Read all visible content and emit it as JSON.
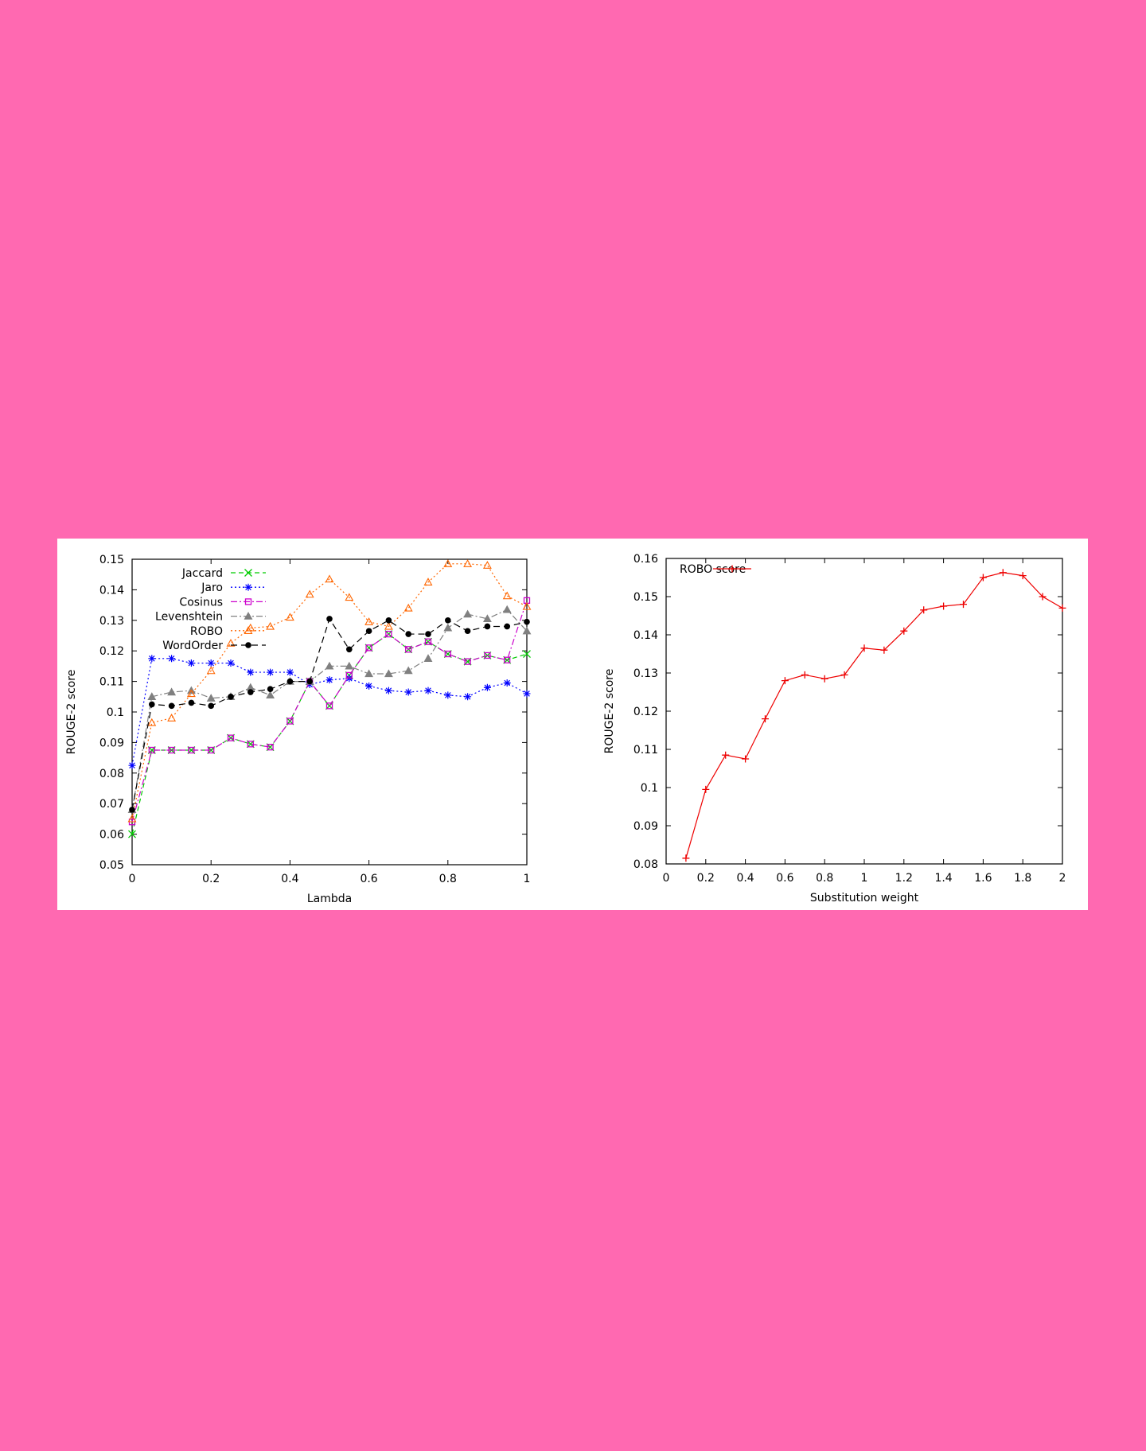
{
  "chart_data": [
    {
      "type": "line",
      "xlabel": "Lambda",
      "ylabel": "ROUGE-2 score",
      "xlim": [
        0,
        1
      ],
      "ylim": [
        0.05,
        0.15
      ],
      "xticks": [
        "0",
        "0.2",
        "0.4",
        "0.6",
        "0.8",
        "1"
      ],
      "yticks": [
        "0.05",
        "0.06",
        "0.07",
        "0.08",
        "0.09",
        "0.1",
        "0.11",
        "0.12",
        "0.13",
        "0.14",
        "0.15"
      ],
      "grid": false,
      "legend_position": "top-left",
      "x": [
        0,
        0.05,
        0.1,
        0.15,
        0.2,
        0.25,
        0.3,
        0.35,
        0.4,
        0.45,
        0.5,
        0.55,
        0.6,
        0.65,
        0.7,
        0.75,
        0.8,
        0.85,
        0.9,
        0.95,
        1.0
      ],
      "series": [
        {
          "name": "Jaccard",
          "color": "#00cc00",
          "dash": "6,4",
          "marker": "x",
          "values": [
            0.06,
            0.0875,
            0.0875,
            0.0875,
            0.0875,
            0.0915,
            0.0895,
            0.0885,
            0.097,
            0.11,
            0.102,
            0.112,
            0.121,
            0.1255,
            0.1205,
            0.123,
            0.119,
            0.1165,
            0.1185,
            0.117,
            0.119
          ]
        },
        {
          "name": "Jaro",
          "color": "#0000ff",
          "dash": "2,3",
          "marker": "star",
          "values": [
            0.0825,
            0.1175,
            0.1175,
            0.116,
            0.116,
            0.116,
            0.113,
            0.113,
            0.113,
            0.109,
            0.1105,
            0.111,
            0.1085,
            0.107,
            0.1065,
            0.107,
            0.1055,
            0.105,
            0.108,
            0.1095,
            0.106
          ]
        },
        {
          "name": "Cosinus",
          "color": "#cc00cc",
          "dash": "8,3,2,3",
          "marker": "square",
          "values": [
            0.064,
            0.0875,
            0.0875,
            0.0875,
            0.0875,
            0.0915,
            0.0895,
            0.0885,
            0.097,
            0.11,
            0.102,
            0.112,
            0.121,
            0.1255,
            0.1205,
            0.123,
            0.119,
            0.1165,
            0.1185,
            0.117,
            0.1365
          ]
        },
        {
          "name": "Levenshtein",
          "color": "#808080",
          "dash": "8,3,2,3",
          "marker": "triangle-filled",
          "values": [
            0.068,
            0.105,
            0.1065,
            0.107,
            0.1045,
            0.105,
            0.108,
            0.1055,
            0.11,
            0.11,
            0.115,
            0.115,
            0.1125,
            0.1125,
            0.1135,
            0.1175,
            0.1275,
            0.132,
            0.1305,
            0.1335,
            0.1265
          ]
        },
        {
          "name": "ROBO",
          "color": "#ff6600",
          "dash": "2,3",
          "marker": "triangle",
          "values": [
            0.065,
            0.0965,
            0.098,
            0.106,
            0.1135,
            0.1225,
            0.1275,
            0.128,
            0.131,
            0.1385,
            0.1435,
            0.1375,
            0.1295,
            0.128,
            0.134,
            0.1425,
            0.1485,
            0.1485,
            0.148,
            0.138,
            0.1345
          ]
        },
        {
          "name": "WordOrder",
          "color": "#000000",
          "dash": "8,5",
          "marker": "circle",
          "values": [
            0.068,
            0.1025,
            0.102,
            0.103,
            0.102,
            0.105,
            0.1065,
            0.1075,
            0.11,
            0.11,
            0.1305,
            0.1205,
            0.1265,
            0.13,
            0.1255,
            0.1255,
            0.13,
            0.1265,
            0.128,
            0.128,
            0.1295
          ]
        }
      ]
    },
    {
      "type": "line",
      "xlabel": "Substitution weight",
      "ylabel": "ROUGE-2 score",
      "xlim": [
        0,
        2
      ],
      "ylim": [
        0.08,
        0.16
      ],
      "xticks": [
        "0",
        "0.2",
        "0.4",
        "0.6",
        "0.8",
        "1",
        "1.2",
        "1.4",
        "1.6",
        "1.8",
        "2"
      ],
      "yticks": [
        "0.08",
        "0.09",
        "0.1",
        "0.11",
        "0.12",
        "0.13",
        "0.14",
        "0.15",
        "0.16"
      ],
      "grid": false,
      "legend_position": "top-left",
      "x": [
        0.1,
        0.2,
        0.3,
        0.4,
        0.5,
        0.6,
        0.7,
        0.8,
        0.9,
        1.0,
        1.1,
        1.2,
        1.3,
        1.4,
        1.5,
        1.6,
        1.7,
        1.8,
        1.9,
        2.0
      ],
      "series": [
        {
          "name": "ROBO score",
          "color": "#ee0000",
          "dash": "",
          "marker": "plus",
          "values": [
            0.0815,
            0.0995,
            0.1085,
            0.1075,
            0.118,
            0.128,
            0.1295,
            0.1285,
            0.1295,
            0.1365,
            0.136,
            0.141,
            0.1465,
            0.1475,
            0.148,
            0.155,
            0.1563,
            0.1555,
            0.15,
            0.147
          ]
        }
      ]
    }
  ]
}
